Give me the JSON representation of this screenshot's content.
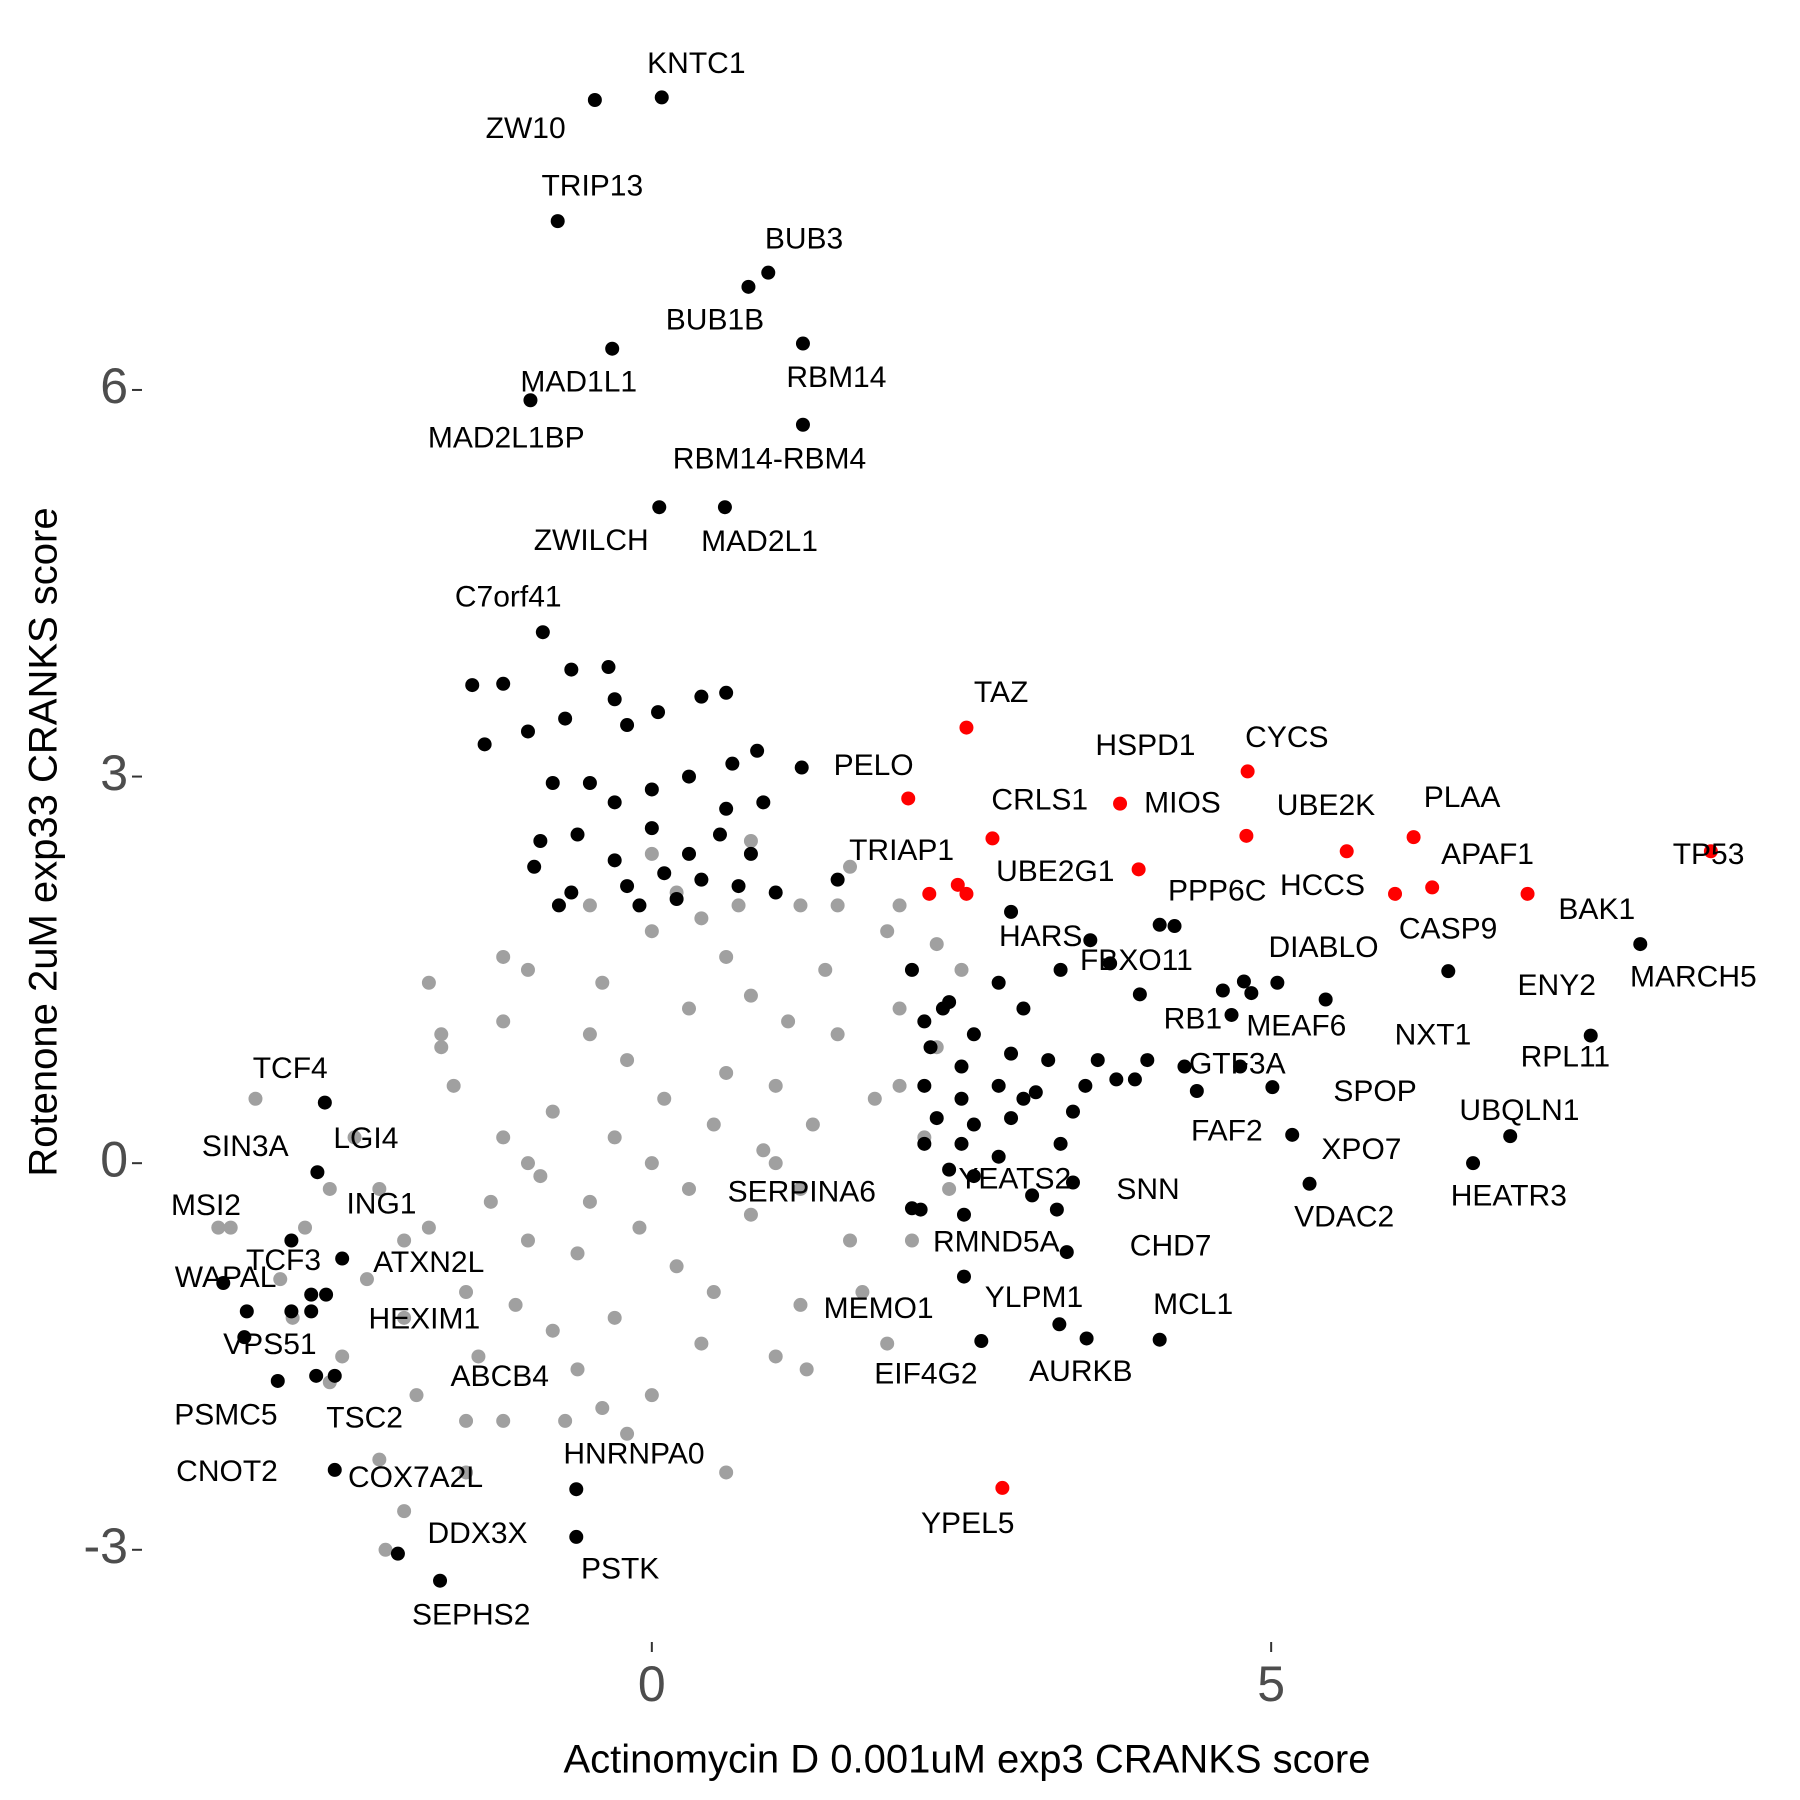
{
  "chart_data": {
    "type": "scatter",
    "x_label": "Actinomycin D 0.001uM exp3 CRANKS score",
    "y_label": "Rotenone 2uM exp33 CRANKS score",
    "xlim": [
      -4.1,
      9.1
    ],
    "ylim": [
      -3.7,
      8.7
    ],
    "xticks": [
      0,
      5
    ],
    "yticks": [
      -3,
      0,
      3,
      6
    ],
    "grid": false,
    "series": [
      {
        "color": "#a0a0a0",
        "x": [
          0,
          0.5,
          -0.5,
          1,
          -1,
          1.5,
          -1.5,
          0.3,
          -0.3,
          0.8,
          -0.8,
          1.2,
          -1.2,
          0.2,
          -0.2,
          1.8,
          -1.8,
          0.6,
          -0.6,
          1.4,
          -1.4,
          0.9,
          -0.9,
          0.1,
          -0.1,
          1.6,
          -1.6,
          0.4,
          -0.4,
          1.1,
          -1.1,
          2.0,
          -2.0,
          0.7,
          -0.7,
          1.3,
          -1.3,
          2.2,
          -2.2,
          0.0,
          0.0,
          1.9,
          -1.9,
          2.3,
          -2.3,
          0.5,
          -0.5,
          1.7,
          -1.7,
          1.0,
          -1.0,
          0.2,
          -0.2,
          1.2,
          -1.2,
          2.5,
          -2.5,
          -2.6,
          2.1,
          -0.4,
          0.4,
          1.5,
          -1.5,
          2.4,
          -2.4,
          0.8,
          -0.8,
          0.6,
          -0.6,
          1.0,
          -1.0,
          2.0,
          -2.0,
          0.3,
          -0.3,
          1.2,
          -1.2,
          -2.8,
          -3.2,
          -2.9,
          -2.2,
          -2.0,
          -2.15,
          -3.0,
          -2.6,
          -1.5,
          0.6,
          1.25,
          1.9,
          2.0,
          1.6,
          0.0,
          -1.2,
          -1.7,
          -1.8,
          0.8,
          2.3,
          -0.5,
          -3.4,
          -3.5
        ],
        "values": [
          0,
          0.3,
          -0.3,
          0.6,
          -0.6,
          1.0,
          -1.0,
          1.2,
          -1.2,
          -0.4,
          0.4,
          -0.2,
          0.2,
          -0.8,
          0.8,
          0.5,
          -0.5,
          1.6,
          -1.6,
          1.5,
          -1.5,
          0.1,
          -0.1,
          0.5,
          -0.5,
          -0.6,
          0.6,
          -1.4,
          1.4,
          1.1,
          -1.1,
          1.2,
          -1.2,
          2.0,
          -2.0,
          0.3,
          -0.3,
          0.2,
          -0.2,
          1.8,
          -1.8,
          1.8,
          -1.8,
          0.9,
          -0.9,
          -1.0,
          1.0,
          -1.0,
          1.0,
          -1.5,
          1.5,
          2.1,
          -2.1,
          2.0,
          -2.0,
          1.5,
          -1.5,
          -0.2,
          -0.6,
          -1.9,
          1.9,
          2.0,
          -2.0,
          -0.2,
          0.2,
          1.3,
          -1.3,
          0.7,
          -0.7,
          0.0,
          0.0,
          0.6,
          -0.6,
          -0.2,
          0.2,
          -1.1,
          1.1,
          -0.5,
          0.5,
          -1.2,
          -2.3,
          -2.7,
          -3.0,
          -0.9,
          -1.7,
          -2.4,
          -2.4,
          -1.6,
          -1.4,
          2.0,
          2.3,
          2.4,
          1.6,
          0.9,
          1.4,
          2.5,
          1.7,
          2.0,
          -0.5,
          -0.5
        ]
      },
      {
        "color": "#000000",
        "x": [
          -1.45,
          -1.2,
          -0.65,
          -0.35,
          -0.3,
          -0.2,
          0.05,
          0.4,
          0.6,
          0.65,
          0.85,
          -1.35,
          -1.0,
          -0.7,
          -0.8,
          -0.5,
          -0.3,
          0.0,
          0.3,
          0.6,
          0.9,
          -0.9,
          -0.6,
          -0.3,
          0.0,
          0.3,
          0.55,
          0.8,
          -0.95,
          -0.65,
          -0.2,
          0.1,
          0.4,
          0.7,
          1.0,
          -0.75,
          -0.1,
          0.2,
          1.5,
          1.21,
          2.1,
          2.4,
          2.8,
          3.3,
          3.0,
          2.2,
          2.6,
          2.25,
          2.5,
          2.9,
          3.2,
          3.6,
          4.0,
          2.2,
          2.5,
          2.8,
          3.1,
          3.5,
          3.9,
          2.3,
          2.6,
          2.9,
          3.4,
          2.2,
          2.5,
          2.8,
          3.3,
          2.4,
          2.6,
          3.4,
          4.1,
          3.7,
          5.05,
          4.3,
          4.75,
          2.9,
          2.1,
          3.75,
          3.0,
          2.35
        ],
        "values": [
          3.71,
          3.72,
          3.83,
          3.85,
          3.6,
          3.4,
          3.5,
          3.62,
          3.65,
          3.1,
          3.2,
          3.25,
          3.35,
          3.45,
          2.95,
          2.95,
          2.8,
          2.9,
          3.0,
          2.75,
          2.8,
          2.5,
          2.55,
          2.35,
          2.6,
          2.4,
          2.55,
          2.4,
          2.3,
          2.1,
          2.15,
          2.25,
          2.2,
          2.15,
          2.1,
          2.0,
          2.0,
          2.05,
          2.2,
          3.07,
          1.5,
          1.25,
          1.4,
          1.5,
          1.2,
          1.1,
          1.0,
          0.9,
          0.75,
          0.85,
          0.8,
          0.8,
          0.8,
          0.6,
          0.5,
          0.6,
          0.55,
          0.6,
          0.65,
          0.35,
          0.3,
          0.35,
          0.4,
          0.15,
          0.15,
          0.05,
          0.15,
          -0.05,
          -0.1,
          -0.15,
          1.85,
          1.55,
          1.4,
          0.75,
          0.75,
          1.95,
          -0.35,
          0.65,
          0.5,
          1.2
        ]
      },
      {
        "color": "#000000",
        "x": [
          0.08,
          -0.46,
          -0.76,
          0.94,
          0.78,
          1.22,
          -0.32,
          -0.98,
          1.22,
          0.06,
          0.59,
          -0.88,
          4.22,
          3.54,
          3.94,
          4.78,
          4.61,
          4.68,
          4.84,
          5.44,
          6.43,
          7.98,
          7.58,
          5.01,
          6.93,
          4.4,
          5.17,
          6.63,
          5.31,
          3.27,
          3.07,
          2.17,
          2.52,
          3.35,
          2.52,
          3.29,
          3.51,
          4.1,
          2.66,
          -0.61,
          -0.61,
          -1.71,
          -2.05,
          -2.56,
          -3.02,
          -3.29,
          -3.27,
          -2.71,
          -2.56,
          -2.75,
          -2.91,
          -3.46,
          -2.75,
          -2.63,
          -2.5,
          -2.91,
          -2.7,
          -2.64
        ],
        "values": [
          8.27,
          8.25,
          7.31,
          6.91,
          6.8,
          6.36,
          6.32,
          5.92,
          5.73,
          5.09,
          5.09,
          4.12,
          1.84,
          1.73,
          1.31,
          1.41,
          1.34,
          1.15,
          1.32,
          1.27,
          1.49,
          1.7,
          0.99,
          0.59,
          0.21,
          0.56,
          0.22,
          0,
          -0.16,
          -0.36,
          -0.25,
          -0.36,
          -0.4,
          -0.69,
          -0.88,
          -1.25,
          -1.36,
          -1.37,
          -1.38,
          -2.53,
          -2.9,
          -3.24,
          -3.03,
          -2.38,
          -1.69,
          -1.35,
          -1.15,
          -1.65,
          -1.65,
          -1.15,
          -1.15,
          -0.93,
          -1.02,
          -1.02,
          -0.74,
          -0.6,
          -0.07,
          0.47
        ],
        "labels": [
          "KNTC1",
          "ZW10",
          "TRIP13",
          "BUB3",
          "BUB1B",
          "RBM14",
          "MAD1L1",
          "MAD2L1BP",
          "RBM14-RBM4",
          "ZWILCH",
          "MAD2L1",
          "C7orf41",
          "PPP6C",
          "HARS",
          "FBXO11",
          "DIABLO",
          "RB1",
          "GTF3A",
          "MEAF6",
          "NXT1",
          "ENY2",
          "MARCH5",
          "RPL11",
          "SPOP",
          "UBQLN1",
          "FAF2",
          "XPO7",
          "HEATR3",
          "VDAC2",
          "SNN",
          "YEATS2",
          "SERPINA6",
          "RMND5A",
          "CHD7",
          "MEMO1",
          "YLPM1",
          "AURKB",
          "MCL1",
          "EIF4G2",
          "HNRNPA0",
          "PSTK",
          "SEPHS2",
          "DDX3X",
          "COX7A2L",
          "CNOT2",
          "PSMC5",
          "VPS51",
          "TSC2",
          "ABCB4",
          "HEXIM1",
          "WAPAL",
          "MSI2",
          "TCF3",
          "ING1",
          "ATXN2L",
          "SIN3A",
          "LGI4",
          "TCF4"
        ]
      },
      {
        "color": "#ff0000",
        "x": [
          2.54,
          2.07,
          2.24,
          2.75,
          3.78,
          3.93,
          4.81,
          4.8,
          5.61,
          6.15,
          6.3,
          6.0,
          7.07,
          8.55,
          2.83,
          2.54,
          2.47
        ],
        "values": [
          3.38,
          2.83,
          2.09,
          2.52,
          2.79,
          2.28,
          3.04,
          2.54,
          2.42,
          2.53,
          2.14,
          2.09,
          2.09,
          2.42,
          -2.52,
          2.09,
          2.16
        ],
        "labels": [
          "TAZ",
          "PELO",
          "TRIAP1",
          "CRLS1",
          "HSPD1",
          "MIOS",
          "CYCS",
          "UBE2K",
          "HCCS",
          "PLAA",
          "APAF1",
          "CASP9",
          "BAK1",
          "TP53",
          "YPEL5",
          "UBE2G1",
          null
        ]
      }
    ]
  }
}
